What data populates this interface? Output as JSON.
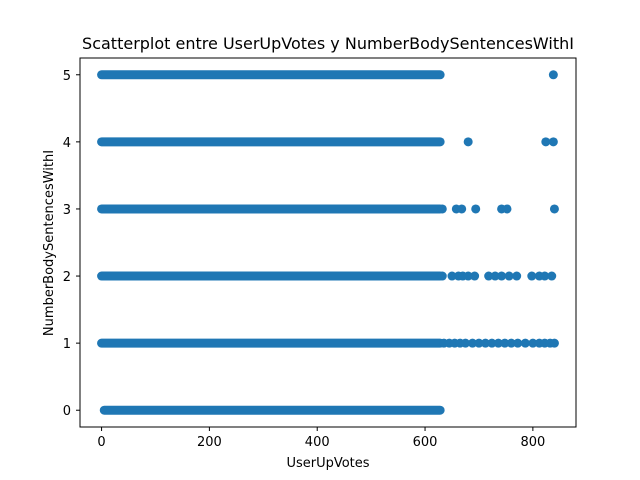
{
  "chart_data": {
    "type": "scatter",
    "title": "Scatterplot entre UserUpVotes y NumberBodySentencesWithI",
    "xlabel": "UserUpVotes",
    "ylabel": "NumberBodySentencesWithI",
    "xlim": [
      -40,
      880
    ],
    "ylim": [
      -0.25,
      5.25
    ],
    "xticks": [
      0,
      200,
      400,
      600,
      800
    ],
    "yticks": [
      0,
      1,
      2,
      3,
      4,
      5
    ],
    "grid": false,
    "legend": "none",
    "marker_color": "#1f77b4",
    "series": [
      {
        "dense_ranges": [
          {
            "y": 5,
            "x_start": 0,
            "x_end": 628
          },
          {
            "y": 4,
            "x_start": 0,
            "x_end": 628
          },
          {
            "y": 3,
            "x_start": 0,
            "x_end": 628
          },
          {
            "y": 2,
            "x_start": 0,
            "x_end": 628
          },
          {
            "y": 1,
            "x_start": 0,
            "x_end": 628
          },
          {
            "y": 0,
            "x_start": 5,
            "x_end": 628
          }
        ],
        "points": [
          {
            "x": 838,
            "y": 5
          },
          {
            "x": 680,
            "y": 4
          },
          {
            "x": 824,
            "y": 4
          },
          {
            "x": 838,
            "y": 4
          },
          {
            "x": 632,
            "y": 3
          },
          {
            "x": 658,
            "y": 3
          },
          {
            "x": 668,
            "y": 3
          },
          {
            "x": 694,
            "y": 3
          },
          {
            "x": 742,
            "y": 3
          },
          {
            "x": 752,
            "y": 3
          },
          {
            "x": 840,
            "y": 3
          },
          {
            "x": 632,
            "y": 2
          },
          {
            "x": 650,
            "y": 2
          },
          {
            "x": 662,
            "y": 2
          },
          {
            "x": 670,
            "y": 2
          },
          {
            "x": 680,
            "y": 2
          },
          {
            "x": 692,
            "y": 2
          },
          {
            "x": 718,
            "y": 2
          },
          {
            "x": 730,
            "y": 2
          },
          {
            "x": 742,
            "y": 2
          },
          {
            "x": 756,
            "y": 2
          },
          {
            "x": 770,
            "y": 2
          },
          {
            "x": 798,
            "y": 2
          },
          {
            "x": 812,
            "y": 2
          },
          {
            "x": 822,
            "y": 2
          },
          {
            "x": 835,
            "y": 2
          },
          {
            "x": 635,
            "y": 1
          },
          {
            "x": 645,
            "y": 1
          },
          {
            "x": 655,
            "y": 1
          },
          {
            "x": 665,
            "y": 1
          },
          {
            "x": 675,
            "y": 1
          },
          {
            "x": 688,
            "y": 1
          },
          {
            "x": 700,
            "y": 1
          },
          {
            "x": 712,
            "y": 1
          },
          {
            "x": 724,
            "y": 1
          },
          {
            "x": 736,
            "y": 1
          },
          {
            "x": 748,
            "y": 1
          },
          {
            "x": 760,
            "y": 1
          },
          {
            "x": 772,
            "y": 1
          },
          {
            "x": 786,
            "y": 1
          },
          {
            "x": 800,
            "y": 1
          },
          {
            "x": 812,
            "y": 1
          },
          {
            "x": 822,
            "y": 1
          },
          {
            "x": 832,
            "y": 1
          },
          {
            "x": 840,
            "y": 1
          }
        ]
      }
    ]
  }
}
